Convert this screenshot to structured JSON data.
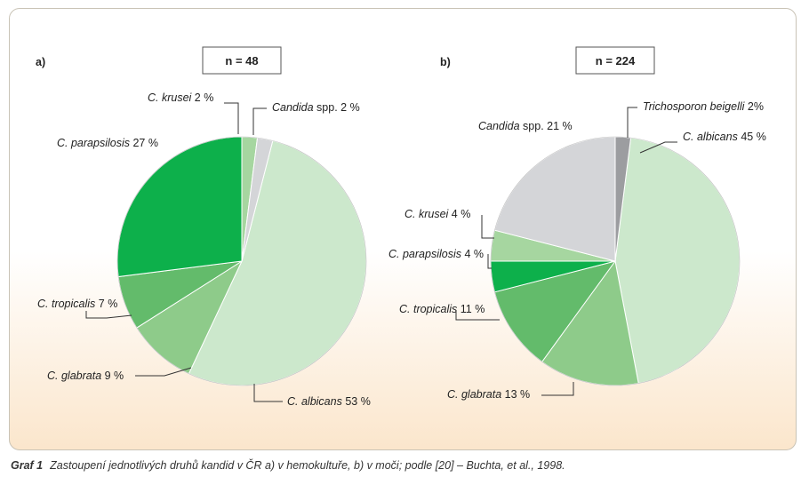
{
  "chart_data": [
    {
      "type": "pie",
      "panel_label": "a)",
      "n_label": "n = 48",
      "slices": [
        {
          "italic": "C. albicans",
          "rest": " 53 %",
          "value": 53,
          "color": "#cce8cc"
        },
        {
          "italic": "C. glabrata",
          "rest": " 9 %",
          "value": 9,
          "color": "#8ecb8a"
        },
        {
          "italic": "C. tropicalis",
          "rest": " 7 %",
          "value": 7,
          "color": "#63bb6b"
        },
        {
          "italic": "C. parapsilosis",
          "rest": " 27 %",
          "value": 27,
          "color": "#0db04b"
        },
        {
          "italic": "C. krusei",
          "rest": " 2 %",
          "value": 2,
          "color": "#a6d6a0"
        },
        {
          "italic": "Candida",
          "rest": " spp. 2 %",
          "value": 2,
          "color": "#d4d5d8"
        }
      ]
    },
    {
      "type": "pie",
      "panel_label": "b)",
      "n_label": "n = 224",
      "slices": [
        {
          "italic": "C. albicans",
          "rest": " 45 %",
          "value": 45,
          "color": "#cce8cc"
        },
        {
          "italic": "C. glabrata",
          "rest": " 13 %",
          "value": 13,
          "color": "#8ecb8a"
        },
        {
          "italic": "C. tropicalis",
          "rest": " 11 %",
          "value": 11,
          "color": "#63bb6b"
        },
        {
          "italic": "C. parapsilosis",
          "rest": " 4 %",
          "value": 4,
          "color": "#0db04b"
        },
        {
          "italic": "C. krusei",
          "rest": " 4 %",
          "value": 4,
          "color": "#a6d6a0"
        },
        {
          "italic": "Candida",
          "rest": " spp. 21 %",
          "value": 21,
          "color": "#d4d5d8"
        },
        {
          "italic": "Trichosporon beigelli",
          "rest": " 2%",
          "value": 2,
          "color": "#9c9da0"
        }
      ]
    }
  ],
  "caption": {
    "label": "Graf 1",
    "text": "Zastoupení jednotlivých druhů kandid v ČR a) v hemokultuře, b) v moči; podle [20] – Buchta, et al., 1998."
  }
}
